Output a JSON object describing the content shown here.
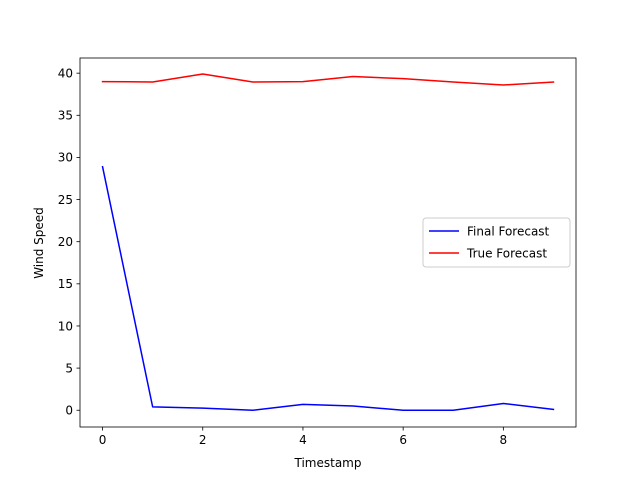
{
  "chart_data": {
    "type": "line",
    "title": "",
    "xlabel": "Timestamp",
    "ylabel": "Wind Speed",
    "xlim": [
      -0.45,
      9.45
    ],
    "ylim": [
      -1.99,
      41.8
    ],
    "xticks": [
      0,
      2,
      4,
      6,
      8
    ],
    "yticks": [
      0,
      5,
      10,
      15,
      20,
      25,
      30,
      35,
      40
    ],
    "grid": false,
    "legend_position": "center-right",
    "x": [
      0,
      1,
      2,
      3,
      4,
      5,
      6,
      7,
      8,
      9
    ],
    "series": [
      {
        "name": "Final Forecast",
        "color": "#0000ff",
        "values": [
          28.9,
          0.4,
          0.25,
          0.0,
          0.7,
          0.5,
          0.0,
          0.0,
          0.8,
          0.1
        ]
      },
      {
        "name": "True Forecast",
        "color": "#ff0000",
        "values": [
          39.0,
          38.95,
          39.9,
          38.95,
          39.0,
          39.6,
          39.35,
          38.95,
          38.6,
          38.95
        ]
      }
    ]
  }
}
